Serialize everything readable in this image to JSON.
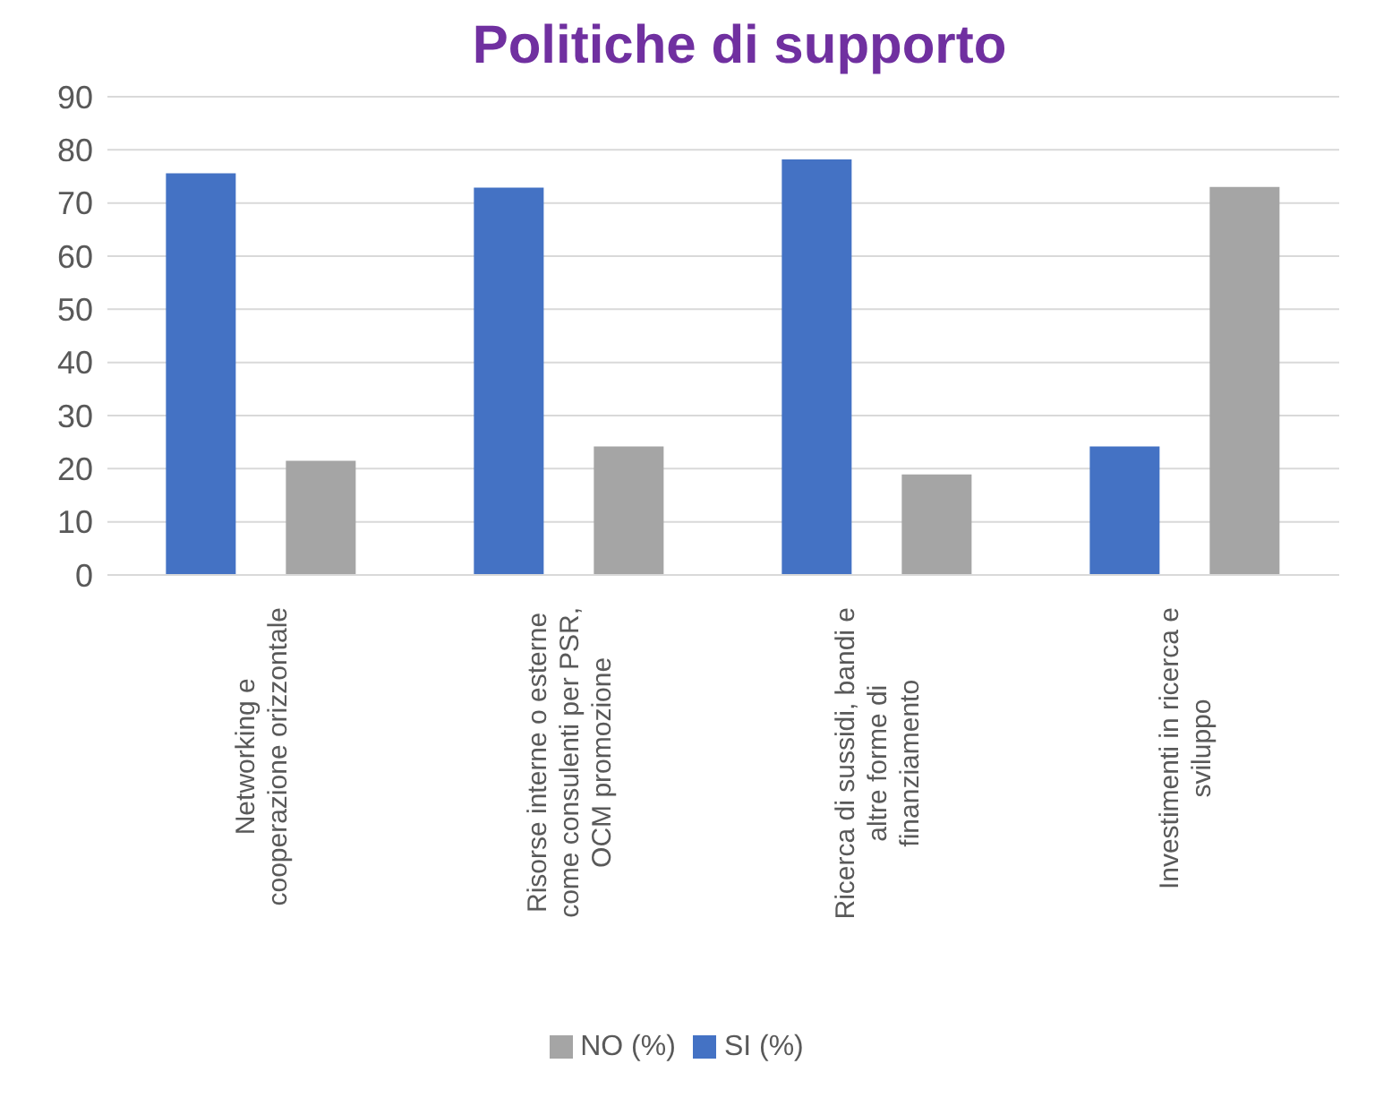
{
  "chart_data": {
    "type": "bar",
    "title": "Politiche di supporto",
    "categories": [
      "Networking e cooperazione orizzontale",
      "Risorse interne o esterne come consulenti per PSR, OCM promozione",
      "Ricerca di sussidi, bandi e altre forme di finanziamento",
      "Investimenti in ricerca e sviluppo"
    ],
    "series": [
      {
        "name": "SI (%)",
        "color": "#4472c4",
        "values": [
          75.6,
          72.9,
          78.2,
          24.2
        ]
      },
      {
        "name": "NO (%)",
        "color": "#a5a5a5",
        "values": [
          21.5,
          24.2,
          18.9,
          73
        ]
      }
    ],
    "ylim": [
      0,
      90
    ],
    "yticks": [
      0,
      10,
      20,
      30,
      40,
      50,
      60,
      70,
      80,
      90
    ],
    "grid": "y",
    "legend": "bottom"
  }
}
